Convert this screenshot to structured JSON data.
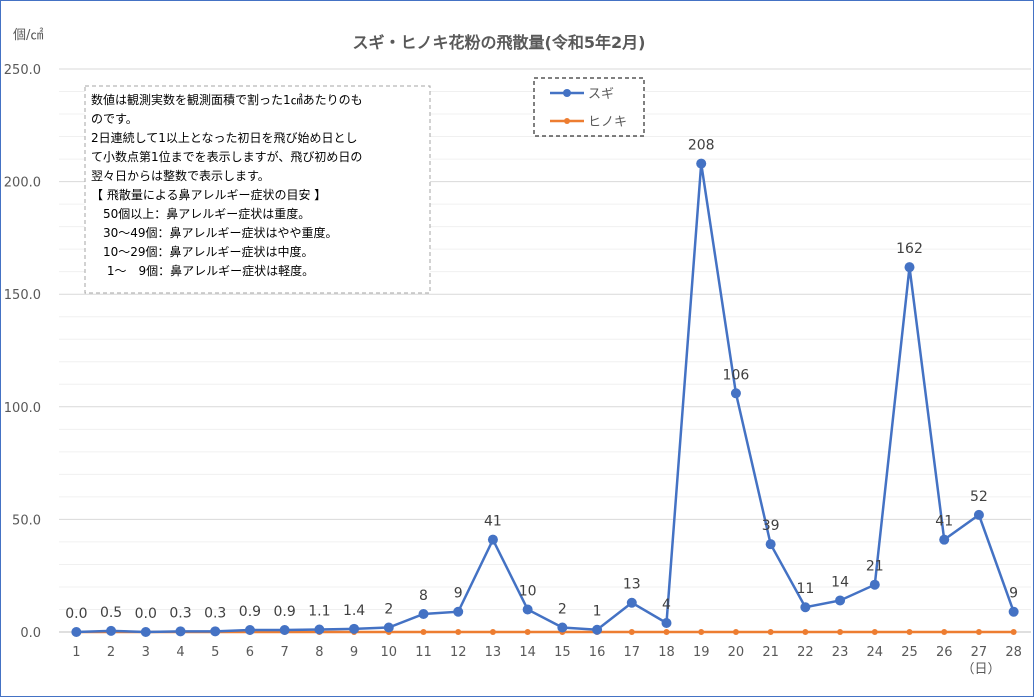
{
  "chart_data": {
    "type": "line",
    "title": "スギ・ヒノキ花粉の飛散量(令和5年2月)",
    "ylabel": "個/㎠",
    "xunit": "（日）",
    "ylim": [
      0,
      250
    ],
    "yticks": [
      "0.0",
      "50.0",
      "100.0",
      "150.0",
      "200.0",
      "250.0"
    ],
    "categories": [
      "1",
      "2",
      "3",
      "4",
      "5",
      "6",
      "7",
      "8",
      "9",
      "10",
      "11",
      "12",
      "13",
      "14",
      "15",
      "16",
      "17",
      "18",
      "19",
      "20",
      "21",
      "22",
      "23",
      "24",
      "25",
      "26",
      "27",
      "28"
    ],
    "series": [
      {
        "name": "スギ",
        "color": "#4472c4",
        "values": [
          0.0,
          0.5,
          0.0,
          0.3,
          0.3,
          0.9,
          0.9,
          1.1,
          1.4,
          2,
          8,
          9,
          41,
          10,
          2,
          1,
          13,
          4,
          208,
          106,
          39,
          11,
          14,
          21,
          162,
          41,
          52,
          9
        ],
        "labels": [
          "0.0",
          "0.5",
          "0.0",
          "0.3",
          "0.3",
          "0.9",
          "0.9",
          "1.1",
          "1.4",
          "2",
          "8",
          "9",
          "41",
          "10",
          "2",
          "1",
          "13",
          "4",
          "208",
          "106",
          "39",
          "11",
          "14",
          "21",
          "162",
          "41",
          "52",
          "9"
        ]
      },
      {
        "name": "ヒノキ",
        "color": "#ed7d31",
        "values": [
          0,
          0,
          0,
          0,
          0,
          0,
          0,
          0,
          0,
          0,
          0,
          0,
          0,
          0,
          0,
          0,
          0,
          0,
          0,
          0,
          0,
          0,
          0,
          0,
          0,
          0,
          0,
          0
        ]
      }
    ],
    "grid": true,
    "legend_position": "top-center"
  },
  "note": {
    "lines": [
      "数値は観測実数を観測面積で割った1㎠あたりのも",
      "のです。",
      "2日連続して1以上となった初日を飛び始め日とし",
      "て小数点第1位までを表示しますが、飛び初め日の",
      "翌々日からは整数で表示します。",
      "【 飛散量による鼻アレルギー症状の目安 】",
      "　50個以上：鼻アレルギー症状は重度。",
      "　30～49個：鼻アレルギー症状はやや重度。",
      "　10～29個：鼻アレルギー症状は中度。",
      "　 1～　9個：鼻アレルギー症状は軽度。"
    ]
  }
}
